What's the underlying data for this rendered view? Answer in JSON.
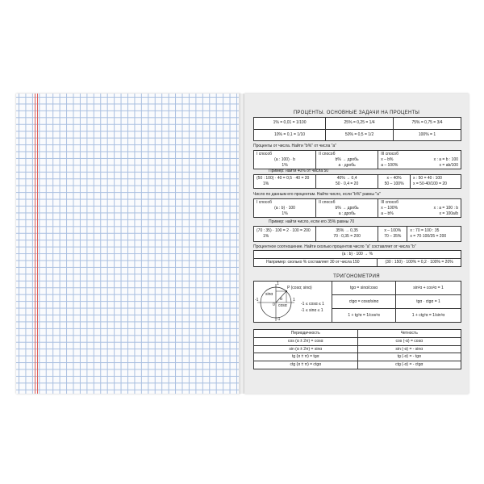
{
  "percent": {
    "title": "ПРОЦЕНТЫ. ОСНОВНЫЕ ЗАДАЧИ НА ПРОЦЕНТЫ",
    "basics": [
      [
        "1% = 0,01 = 1/100",
        "25% = 0,25 = 1/4",
        "75% = 0,75 = 3/4"
      ],
      [
        "10% = 0,1 = 1/10",
        "50% = 0,5 = 1/2",
        "100% = 1"
      ]
    ],
    "task1_label": "Проценты от числа.  Найти \"b%\" от числа \"a\"",
    "task1": {
      "m1_title": "I  способ",
      "m1_formula": "(a : 100) · b",
      "m1_den": "1%",
      "m2_title": "II  способ",
      "m2_l1": "b% → дробь",
      "m2_l2": "a · дробь",
      "m3_title": "III  способ",
      "m3_l1": "x – b%",
      "m3_l2": "a – 100%",
      "m3_r1": "x : a = b : 100",
      "m3_r2": "x = ab/100"
    },
    "example1_label": "Пример:  найти 40% от числа 50",
    "example1": {
      "c1": "(50 : 100) · 40 = 0,5 · 40 = 20",
      "c1_den": "1%",
      "c2_l1": "40% → 0,4",
      "c2_l2": "50 · 0,4 = 20",
      "c3_l1": "x – 40%",
      "c3_l2": "50 – 100%",
      "c4_l1": "x : 50 = 40 : 100",
      "c4_l2": "x = 50·40/100 = 20"
    },
    "task2_label": "Число по данным его процентам.  Найти число, если \"b%\" равны \"a\"",
    "task2": {
      "m1_title": "I  способ",
      "m1_formula": "(a : b) · 100",
      "m1_den": "1%",
      "m2_title": "II  способ",
      "m2_l1": "b% → дробь",
      "m2_l2": "a  :  дробь",
      "m3_title": "III  способ",
      "m3_l1": "x – 100%",
      "m3_l2": "a – b%",
      "m3_r1": "x : a = 100 : b",
      "m3_r2": "x = 100a/b"
    },
    "example2_label": "Пример:  найти число, если его 35% равны 70",
    "example2": {
      "c1": "(70 : 35) · 100 = 2 · 100 = 200",
      "c1_den": "1%",
      "c2_l1": "35% → 0,35",
      "c2_l2": "70 : 0,35 = 200",
      "c3_l1": "x – 100%",
      "c3_l2": "70 – 35%",
      "c4_l1": "x : 70 = 100 : 35",
      "c4_l2": "x = 70·100/35 = 200"
    },
    "task3_label": "Процентное соотношение.  Найти сколько процентов число \"a\" составляет от числа \"b\"",
    "task3_formula": "(a : b) · 100 → %",
    "example3_label": "Например:  сколько % составляет 30 от числа 150",
    "example3_solution": "(30 : 150) · 100% = 0,2 · 100% = 20%"
  },
  "trig": {
    "title": "ТРИГОНОМЕТРИЯ",
    "circle": {
      "point": "P (cosα;  sinα)",
      "sin": "sinα",
      "cos": "cosα",
      "alpha": "α",
      "one": "1",
      "minus_one": "-1",
      "zero": "0"
    },
    "ranges": [
      "-1 ≤ cosα ≤ 1",
      "-1 ≤ sinα ≤ 1"
    ],
    "identities": [
      [
        "tgα = sinα/cosα",
        "sin²α + cos²α = 1"
      ],
      [
        "ctgα = cosα/sinα",
        "tgα · ctgα = 1"
      ],
      [
        "1 + tg²α = 1/cos²α",
        "1 + ctg²α = 1/sin²α"
      ]
    ],
    "headers": [
      "Периодичность",
      "Четность"
    ],
    "rows": [
      [
        "cos (α ± 2π) = cosα",
        "cos (-α) = cosα"
      ],
      [
        "sin (α ± 2π) = sinα",
        "sin (-α) = - sinα"
      ],
      [
        "tg (α ± π) = tgα",
        "tg (-α) = - tgα"
      ],
      [
        "ctg (α ± π) = ctgα",
        "ctg (-α) = - ctgα"
      ]
    ]
  }
}
